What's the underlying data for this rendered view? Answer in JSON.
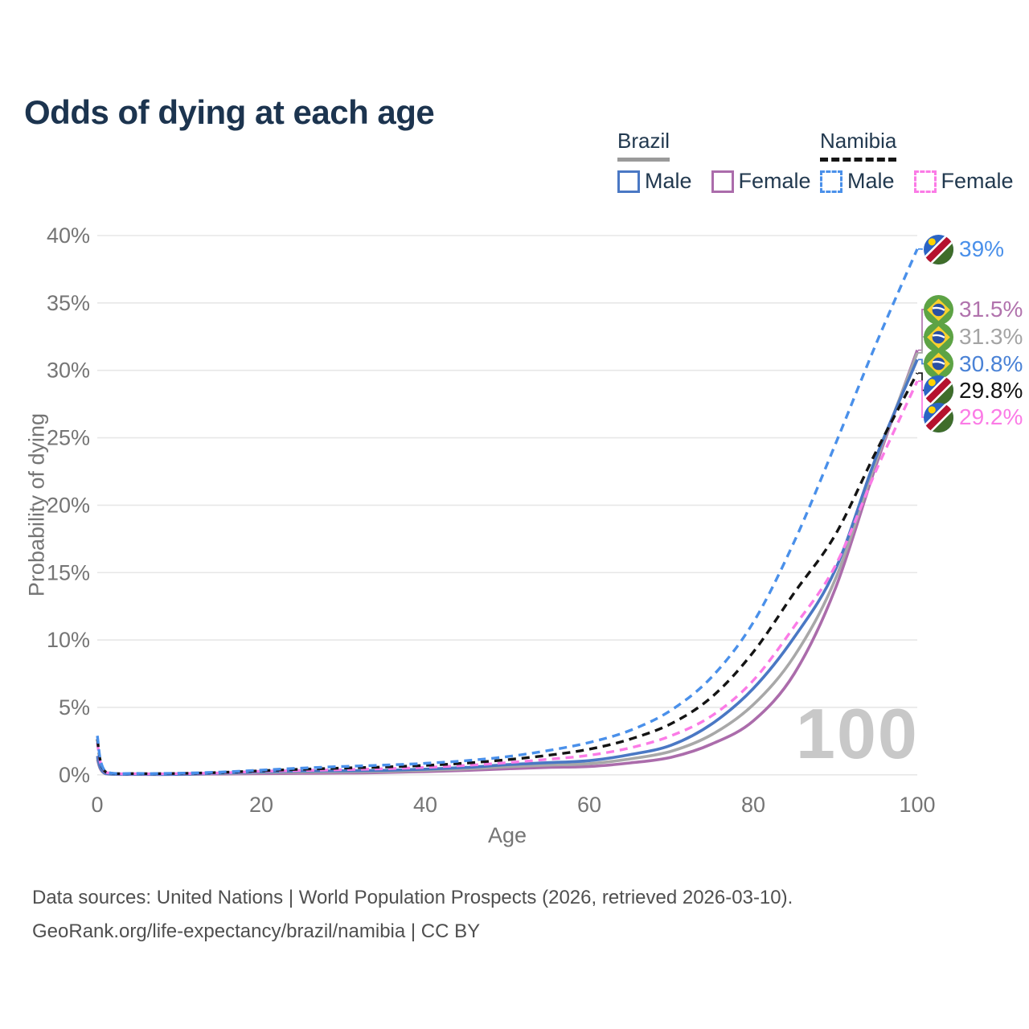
{
  "title": "Odds of dying at each age",
  "legend": {
    "groups": [
      {
        "label": "Brazil",
        "line_style": "solid",
        "items": [
          {
            "label": "Male",
            "color": "#4a78c4"
          },
          {
            "label": "Female",
            "color": "#ab6cab"
          }
        ]
      },
      {
        "label": "Namibia",
        "line_style": "dashed",
        "items": [
          {
            "label": "Male",
            "color": "#4a90ea"
          },
          {
            "label": "Female",
            "color": "#fb7be6"
          }
        ]
      }
    ]
  },
  "watermark": "100",
  "footer": {
    "line1": "Data sources: United Nations | World Population Prospects (2026, retrieved 2026-03-10).",
    "line2": "GeoRank.org/life-expectancy/brazil/namibia | CC BY"
  },
  "chart_data": {
    "type": "line",
    "title": "Odds of dying at each age",
    "xlabel": "Age",
    "ylabel": "Probability of dying",
    "xlim": [
      0,
      100
    ],
    "ylim": [
      0,
      40
    ],
    "x_ticks": [
      0,
      20,
      40,
      60,
      80,
      100
    ],
    "y_ticks": [
      0,
      5,
      10,
      15,
      20,
      25,
      30,
      35,
      40
    ],
    "y_tick_suffix": "%",
    "grid": true,
    "legend_position": "top-right",
    "ages": [
      0,
      1,
      5,
      10,
      15,
      20,
      25,
      30,
      35,
      40,
      45,
      50,
      55,
      60,
      65,
      70,
      75,
      80,
      85,
      90,
      95,
      100
    ],
    "series": [
      {
        "id": "namibia-male",
        "name": "Namibia – Male",
        "country": "Namibia",
        "flag": "namibia",
        "color": "#4a90ea",
        "dashed": true,
        "end_label": "39%",
        "end_label_color": "#4a90ea",
        "end_value": 39.0,
        "values": [
          2.9,
          0.25,
          0.1,
          0.12,
          0.2,
          0.35,
          0.5,
          0.62,
          0.72,
          0.85,
          1.05,
          1.35,
          1.8,
          2.4,
          3.3,
          4.8,
          7.3,
          11.3,
          17.3,
          24.5,
          32.0,
          39.0
        ]
      },
      {
        "id": "brazil-female",
        "name": "Brazil – Female",
        "country": "Brazil",
        "flag": "brazil",
        "color": "#ab6cab",
        "dashed": false,
        "end_label": "31.5%",
        "end_label_color": "#b173ad",
        "end_value": 31.5,
        "values": [
          1.15,
          0.08,
          0.03,
          0.03,
          0.06,
          0.09,
          0.11,
          0.13,
          0.17,
          0.24,
          0.33,
          0.45,
          0.55,
          0.62,
          0.88,
          1.3,
          2.3,
          4.0,
          7.5,
          13.8,
          23.0,
          31.5
        ]
      },
      {
        "id": "brazil-total",
        "name": "Brazil – Both sexes",
        "country": "Brazil",
        "flag": "brazil",
        "color": "#a8a8a8",
        "dashed": false,
        "end_label": "31.3%",
        "end_label_color": "#a4a4a4",
        "end_value": 31.3,
        "values": [
          1.28,
          0.09,
          0.04,
          0.04,
          0.09,
          0.16,
          0.2,
          0.22,
          0.25,
          0.33,
          0.44,
          0.6,
          0.72,
          0.83,
          1.18,
          1.75,
          3.0,
          5.2,
          8.8,
          14.5,
          23.3,
          31.3
        ]
      },
      {
        "id": "brazil-male",
        "name": "Brazil – Male",
        "country": "Brazil",
        "flag": "brazil",
        "color": "#4a78c4",
        "dashed": false,
        "end_label": "30.8%",
        "end_label_color": "#4a82d6",
        "end_value": 30.8,
        "values": [
          1.4,
          0.1,
          0.04,
          0.04,
          0.12,
          0.22,
          0.28,
          0.3,
          0.33,
          0.42,
          0.55,
          0.75,
          0.9,
          1.05,
          1.5,
          2.2,
          3.8,
          6.4,
          10.2,
          15.2,
          23.6,
          30.8
        ]
      },
      {
        "id": "namibia-total",
        "name": "Namibia – Both sexes",
        "country": "Namibia",
        "flag": "namibia",
        "color": "#141414",
        "dashed": true,
        "end_label": "29.8%",
        "end_label_color": "#141414",
        "end_value": 29.8,
        "values": [
          2.65,
          0.22,
          0.09,
          0.1,
          0.17,
          0.3,
          0.41,
          0.5,
          0.58,
          0.7,
          0.87,
          1.12,
          1.45,
          1.9,
          2.65,
          3.8,
          5.8,
          9.1,
          13.5,
          17.8,
          24.0,
          29.8
        ]
      },
      {
        "id": "namibia-female",
        "name": "Namibia – Female",
        "country": "Namibia",
        "flag": "namibia",
        "color": "#fb7be6",
        "dashed": true,
        "end_label": "29.2%",
        "end_label_color": "#fb7be6",
        "end_value": 29.2,
        "values": [
          2.4,
          0.2,
          0.08,
          0.09,
          0.14,
          0.26,
          0.32,
          0.38,
          0.45,
          0.55,
          0.7,
          0.9,
          1.15,
          1.45,
          2.0,
          2.9,
          4.4,
          7.0,
          11.0,
          15.5,
          22.6,
          29.2
        ]
      }
    ]
  }
}
